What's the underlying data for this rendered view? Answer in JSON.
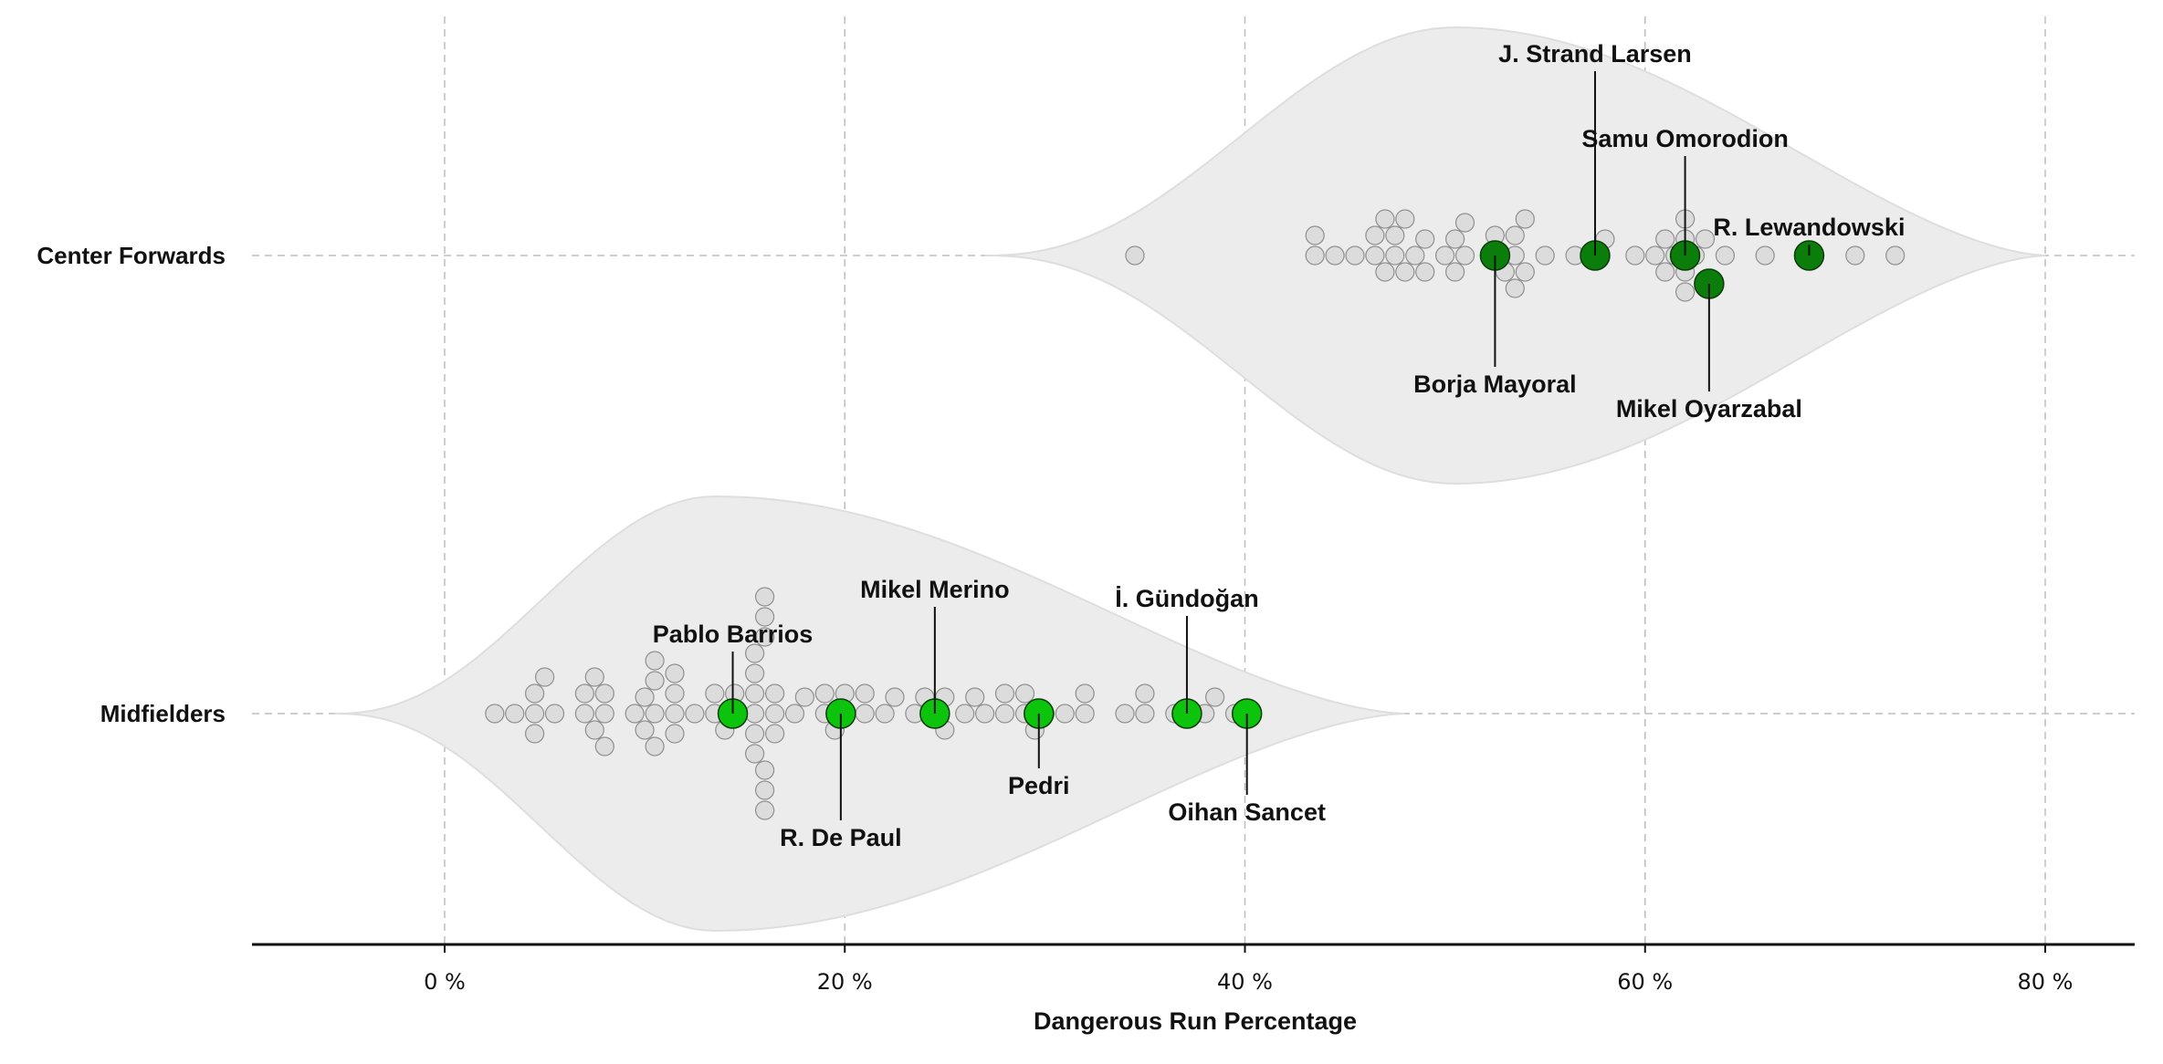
{
  "chart_data": {
    "type": "scatter",
    "title": "",
    "xlabel": "Dangerous Run Percentage",
    "ylabel": "",
    "xlim": [
      -10,
      85
    ],
    "x_ticks": [
      0,
      20,
      40,
      60,
      80
    ],
    "x_tick_labels": [
      "0 %",
      "20 %",
      "40 %",
      "60 %",
      "80 %"
    ],
    "grid": true,
    "categories": [
      "Center Forwards",
      "Midfielders"
    ],
    "violins": [
      {
        "category": "Center Forwards",
        "min": 27,
        "max": 80,
        "peak": 50.5
      },
      {
        "category": "Midfielders",
        "min": -5.5,
        "max": 48,
        "peak": 13.5
      }
    ],
    "colors": {
      "cf_highlight": "#0a7d0a",
      "mf_highlight": "#0cc40c",
      "background_points": "#dcdcdc",
      "violin_fill": "#ececec"
    },
    "background_points": [
      {
        "category": "Center Forwards",
        "values": [
          34.5,
          43.5,
          44.5,
          45.5,
          46.5,
          47,
          47.5,
          48,
          48.5,
          49,
          50,
          50.5,
          51,
          52.5,
          53,
          53.5,
          54,
          55,
          56.5,
          57.5,
          58,
          59.5,
          60.5,
          61,
          61.5,
          62,
          62.5,
          63,
          64,
          66,
          68,
          70.5,
          72.5,
          43.5,
          46.5,
          47.5,
          49,
          50.5,
          53.5,
          62,
          62,
          47,
          48,
          51,
          53.5,
          62,
          61,
          52.5,
          54
        ]
      },
      {
        "category": "Midfielders",
        "values": [
          2.5,
          3.5,
          4.5,
          5.5,
          7,
          8,
          9.5,
          10.5,
          11.5,
          12.5,
          13.5,
          14.5,
          15.5,
          16.5,
          17.5,
          18,
          19,
          20,
          21,
          22,
          23.5,
          25,
          26,
          27,
          28,
          29,
          30,
          31,
          32,
          34,
          35,
          36.5,
          38.5,
          39.5,
          4.5,
          5,
          7,
          7.5,
          10,
          10.5,
          11.5,
          15.5,
          16,
          19,
          21,
          24,
          28,
          29,
          32,
          35,
          38,
          8,
          10,
          15.5,
          16,
          20,
          24.5,
          4.5,
          7.5,
          10.5,
          11.5,
          14,
          15.5,
          16.5,
          8,
          10.5,
          15.5,
          16,
          19.5,
          29.5,
          15.5,
          16,
          16,
          16,
          16.5,
          14.5,
          13.5,
          11.5,
          22.5,
          25,
          26.5
        ]
      }
    ],
    "series": [
      {
        "category": "Center Forwards",
        "points": [
          {
            "label": "Borja Mayoral",
            "x": 52.5
          },
          {
            "label": "J. Strand Larsen",
            "x": 57.5
          },
          {
            "label": "Samu Omorodion",
            "x": 62
          },
          {
            "label": "Mikel Oyarzabal",
            "x": 63.2
          },
          {
            "label": "R. Lewandowski",
            "x": 68.2
          }
        ]
      },
      {
        "category": "Midfielders",
        "points": [
          {
            "label": "Pablo Barrios",
            "x": 14.4
          },
          {
            "label": "R. De Paul",
            "x": 19.8
          },
          {
            "label": "Mikel Merino",
            "x": 24.5
          },
          {
            "label": "Pedri",
            "x": 29.7
          },
          {
            "label": "İ. Gündoğan",
            "x": 37.1
          },
          {
            "label": "Oihan Sancet",
            "x": 40.1
          }
        ]
      }
    ]
  }
}
